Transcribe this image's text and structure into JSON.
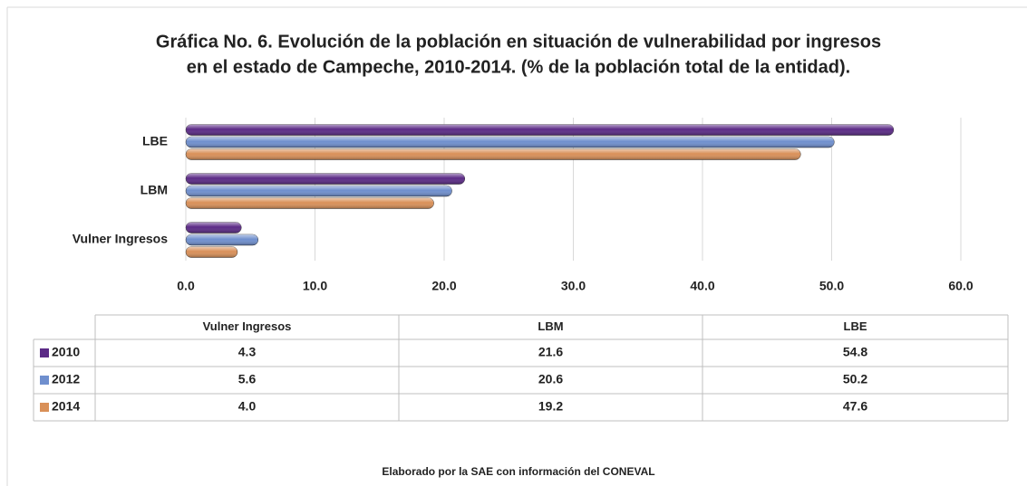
{
  "chart_data": {
    "type": "bar",
    "title": [
      "Gráfica No. 6. Evolución de la población en situación de vulnerabilidad por ingresos",
      "en el estado de Campeche, 2010-2014. (% de la población total de la entidad)."
    ],
    "categories": [
      "Vulner Ingresos",
      "LBM",
      "LBE"
    ],
    "series": [
      {
        "name": "2010",
        "color": "#5b2a86",
        "values": [
          4.3,
          21.6,
          54.8
        ],
        "value_labels": [
          "4.3",
          "21.6",
          "54.8"
        ]
      },
      {
        "name": "2012",
        "color": "#6f8fce",
        "values": [
          5.6,
          20.6,
          50.2
        ],
        "value_labels": [
          "5.6",
          "20.6",
          "50.2"
        ]
      },
      {
        "name": "2014",
        "color": "#d99058",
        "values": [
          4.0,
          19.2,
          47.6
        ],
        "value_labels": [
          "4.0",
          "19.2",
          "47.6"
        ]
      }
    ],
    "xlim": [
      0,
      60
    ],
    "xticks": [
      {
        "value": 0,
        "label": "0.0"
      },
      {
        "value": 10,
        "label": "10.0"
      },
      {
        "value": 20,
        "label": "20.0"
      },
      {
        "value": 30,
        "label": "30.0"
      },
      {
        "value": 40,
        "label": "40.0"
      },
      {
        "value": 50,
        "label": "50.0"
      },
      {
        "value": 60,
        "label": "60.0"
      }
    ],
    "grid": true,
    "note": "Elaborado por la SAE con información del CONEVAL"
  }
}
